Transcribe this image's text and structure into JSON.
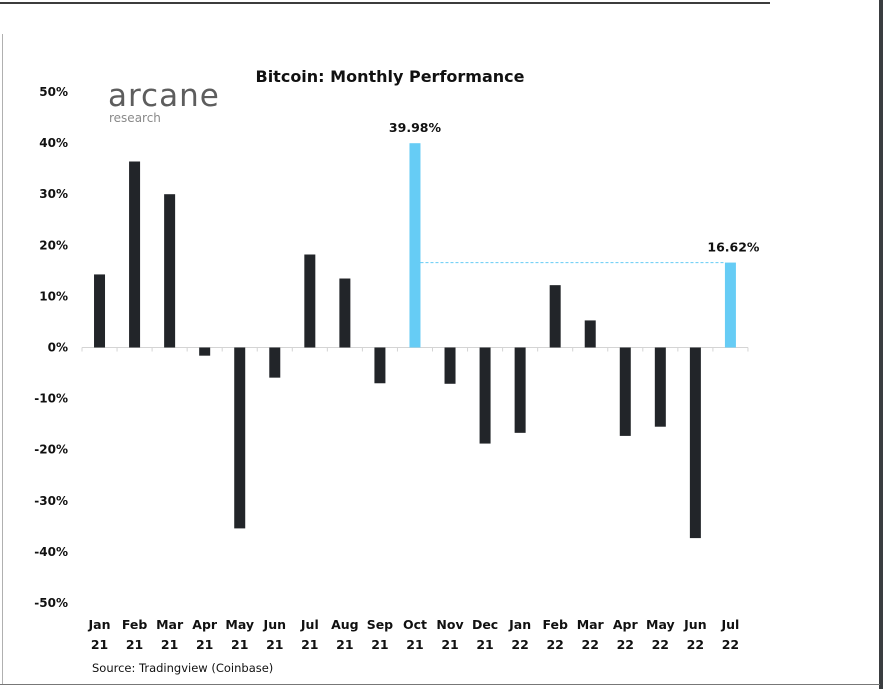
{
  "branding": {
    "logo_main": "arcane",
    "logo_sub": "research"
  },
  "chart_data": {
    "type": "bar",
    "title": "Bitcoin: Monthly Performance",
    "xlabel": "",
    "ylabel": "",
    "ylim": [
      -50,
      50
    ],
    "yticks": [
      50,
      40,
      30,
      20,
      10,
      0,
      -10,
      -20,
      -30,
      -40,
      -50
    ],
    "ytick_labels": [
      "50%",
      "40%",
      "30%",
      "20%",
      "10%",
      "0%",
      "-10%",
      "-20%",
      "-30%",
      "-40%",
      "-50%"
    ],
    "grid": false,
    "categories": [
      {
        "month": "Jan",
        "year": "21"
      },
      {
        "month": "Feb",
        "year": "21"
      },
      {
        "month": "Mar",
        "year": "21"
      },
      {
        "month": "Apr",
        "year": "21"
      },
      {
        "month": "May",
        "year": "21"
      },
      {
        "month": "Jun",
        "year": "21"
      },
      {
        "month": "Jul",
        "year": "21"
      },
      {
        "month": "Aug",
        "year": "21"
      },
      {
        "month": "Sep",
        "year": "21"
      },
      {
        "month": "Oct",
        "year": "21"
      },
      {
        "month": "Nov",
        "year": "21"
      },
      {
        "month": "Dec",
        "year": "21"
      },
      {
        "month": "Jan",
        "year": "22"
      },
      {
        "month": "Feb",
        "year": "22"
      },
      {
        "month": "Mar",
        "year": "22"
      },
      {
        "month": "Apr",
        "year": "22"
      },
      {
        "month": "May",
        "year": "22"
      },
      {
        "month": "Jun",
        "year": "22"
      },
      {
        "month": "Jul",
        "year": "22"
      }
    ],
    "values": [
      14.3,
      36.4,
      30.0,
      -1.6,
      -35.4,
      -5.9,
      18.2,
      13.5,
      -7.0,
      39.98,
      -7.1,
      -18.8,
      -16.7,
      12.2,
      5.3,
      -17.3,
      -15.5,
      -37.3,
      16.62
    ],
    "highlighted_indices": [
      9,
      18
    ],
    "colors": {
      "default": "#222529",
      "highlight": "#66ccf5",
      "reference_line": "#66ccf5",
      "axis": "#d4d4d4"
    },
    "annotations": [
      {
        "index": 9,
        "text": "39.98%"
      },
      {
        "index": 18,
        "text": "16.62%"
      }
    ],
    "reference_line": {
      "from_index": 9,
      "to_index": 18,
      "value": 16.62,
      "style": "dashed"
    },
    "source": "Source: Tradingview (Coinbase)"
  }
}
